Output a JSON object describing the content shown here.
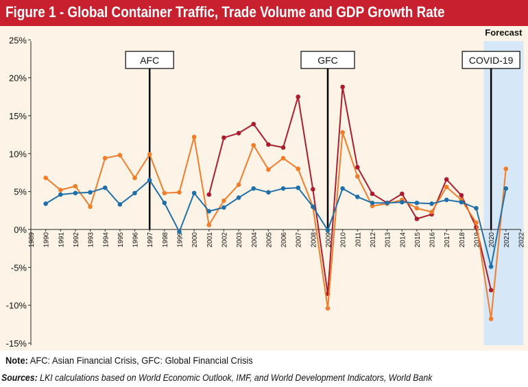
{
  "header": {
    "title": "Figure 1 - Global Container Traffic, Trade Volume and GDP Growth Rate"
  },
  "footer": {
    "note_label": "Note:",
    "note_text": " AFC: Asian Financial Crisis, GFC: Global Financial Crisis",
    "sources_label": "Sources:",
    "sources_text": " LKI calculations based on World Economic Outlook, IMF, and World Development Indicators, World Bank"
  },
  "chart_data": {
    "type": "line",
    "x": [
      1990,
      1991,
      1992,
      1993,
      1994,
      1995,
      1996,
      1997,
      1998,
      1999,
      2000,
      2001,
      2002,
      2003,
      2004,
      2005,
      2006,
      2007,
      2008,
      2009,
      2010,
      2011,
      2012,
      2013,
      2014,
      2015,
      2016,
      2017,
      2018,
      2019,
      2020,
      2021
    ],
    "x_ticks": [
      "1989",
      "1990",
      "1991",
      "1992",
      "1993",
      "1994",
      "1995",
      "1996",
      "1997",
      "1998",
      "1999",
      "2000",
      "2001",
      "2002",
      "2003",
      "2004",
      "2005",
      "2006",
      "2007",
      "2008",
      "2009",
      "2010",
      "2011",
      "2012",
      "2013",
      "2014",
      "2015",
      "2016",
      "2017",
      "2018",
      "2019",
      "2020",
      "2021",
      "2022"
    ],
    "y_ticks": [
      "25%",
      "20%",
      "15%",
      "10%",
      "5%",
      "0%",
      "-5%",
      "-10%",
      "-15%"
    ],
    "ylim": [
      -15,
      25
    ],
    "xlim": [
      1989,
      2022
    ],
    "series": [
      {
        "color": "#a91d2e",
        "values": [
          null,
          null,
          null,
          null,
          null,
          null,
          null,
          null,
          null,
          null,
          null,
          4.6,
          12.1,
          12.7,
          13.9,
          11.2,
          10.8,
          17.5,
          5.3,
          -8.5,
          18.8,
          8.2,
          4.7,
          3.5,
          4.7,
          1.4,
          2.0,
          6.6,
          4.5,
          0.3,
          -8.0,
          null
        ]
      },
      {
        "color": "#ef7d2a",
        "values": [
          6.8,
          5.2,
          5.7,
          3.0,
          9.4,
          9.8,
          6.8,
          9.9,
          4.8,
          4.9,
          12.2,
          0.6,
          3.8,
          5.9,
          11.1,
          7.9,
          9.4,
          8.0,
          3.0,
          -10.4,
          12.8,
          7.0,
          3.1,
          3.4,
          3.9,
          2.8,
          2.3,
          5.6,
          3.9,
          0.9,
          -11.8,
          8.0
        ]
      },
      {
        "color": "#1f6fa8",
        "values": [
          3.4,
          4.6,
          4.8,
          4.9,
          5.5,
          3.3,
          4.8,
          6.5,
          3.5,
          -0.3,
          4.8,
          2.4,
          2.9,
          4.2,
          5.4,
          4.9,
          5.4,
          5.5,
          3.0,
          -0.1,
          5.4,
          4.3,
          3.5,
          3.5,
          3.6,
          3.5,
          3.4,
          3.9,
          3.6,
          2.8,
          -4.9,
          5.4
        ]
      }
    ],
    "annotations": [
      {
        "label": "AFC",
        "x": 1997
      },
      {
        "label": "GFC",
        "x": 2009
      },
      {
        "label": "COVID-19",
        "x": 2020
      }
    ],
    "forecast": {
      "label": "Forecast",
      "from": 2019.5,
      "to": 2022
    },
    "grid": false
  }
}
